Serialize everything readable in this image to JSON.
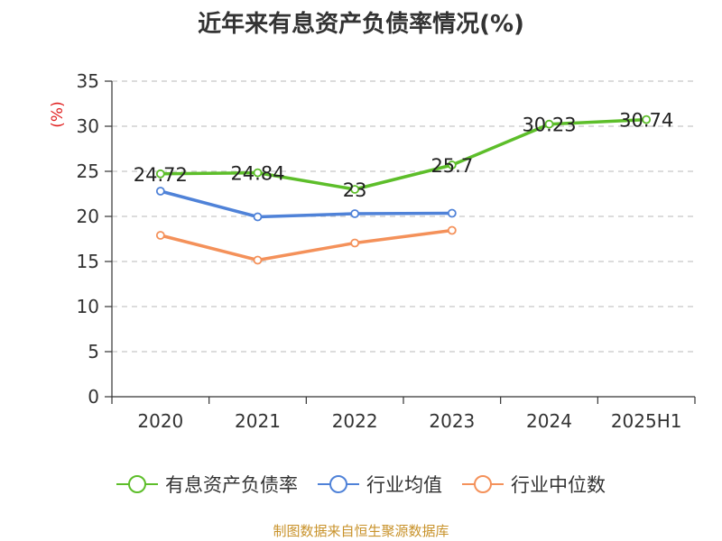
{
  "chart_data": {
    "type": "line",
    "title": "近年来有息资产负债率情况(%)",
    "ylabel": "(%)",
    "xlabel": "",
    "categories": [
      "2020",
      "2021",
      "2022",
      "2023",
      "2024",
      "2025H1"
    ],
    "ylim": [
      0,
      35
    ],
    "yticks": [
      0,
      5,
      10,
      15,
      20,
      25,
      30,
      35
    ],
    "grid": "horizontal dashed",
    "legend_position": "bottom",
    "series": [
      {
        "name": "有息资产负债率",
        "color": "#5dbe2a",
        "values": [
          24.72,
          24.84,
          23,
          25.7,
          30.23,
          30.74
        ],
        "labels": [
          "24.72",
          "24.84",
          "23",
          "25.7",
          "30.23",
          "30.74"
        ]
      },
      {
        "name": "行业均值",
        "color": "#4f82d8",
        "values": [
          22.8,
          19.95,
          20.3,
          20.35,
          null,
          null
        ]
      },
      {
        "name": "行业中位数",
        "color": "#f4915a",
        "values": [
          17.9,
          15.15,
          17.05,
          18.45,
          null,
          null
        ]
      }
    ],
    "source": "制图数据来自恒生聚源数据库"
  },
  "colors": {
    "title": "#333333",
    "ylabel": "#e02020",
    "source": "#c8922a",
    "grid": "#c8c8c8",
    "axis": "#333333"
  }
}
